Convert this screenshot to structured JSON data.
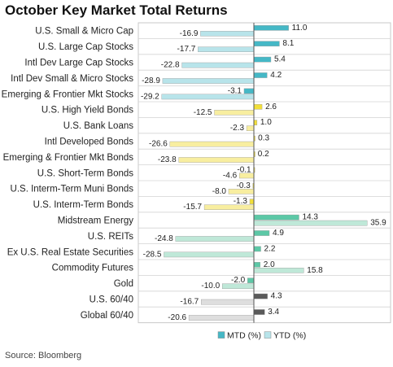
{
  "page": {
    "title": "October Key Market Total Returns",
    "source": "Source: Bloomberg"
  },
  "chart_data": {
    "type": "bar",
    "orientation": "horizontal",
    "title": "October Key Market Total Returns",
    "xlim": [
      -33,
      38
    ],
    "grid": "horizontal row separators",
    "legend_position": "bottom-right",
    "categories": [
      "U.S. Small & Micro Cap",
      "U.S. Large Cap Stocks",
      "Intl Dev Large Cap Stocks",
      "Intl Dev Small & Micro Stocks",
      "Emerging & Frontier Mkt Stocks",
      "U.S. High Yield Bonds",
      "U.S. Bank Loans",
      "Intl Developed Bonds",
      "Emerging & Frontier Mkt Bonds",
      "U.S. Short-Term Bonds",
      "U.S. Interm-Term Muni Bonds",
      "U.S. Interm-Term Bonds",
      "Midstream Energy",
      "U.S. REITs",
      "Ex U.S. Real Estate Securities",
      "Commodity Futures",
      "Gold",
      "U.S. 60/40",
      "Global 60/40"
    ],
    "groups": [
      "blue",
      "blue",
      "blue",
      "blue",
      "blue",
      "yellow",
      "yellow",
      "yellow",
      "yellow",
      "yellow",
      "yellow",
      "yellow",
      "green",
      "green",
      "green",
      "green",
      "green",
      "gray",
      "gray"
    ],
    "group_colors": {
      "blue": {
        "mtd": "#45b8c6",
        "ytd": "#b8e4ea"
      },
      "yellow": {
        "mtd": "#f2df38",
        "ytd": "#f8eea0"
      },
      "green": {
        "mtd": "#5cc8a6",
        "ytd": "#bfe8d8"
      },
      "gray": {
        "mtd": "#5a5a5a",
        "ytd": "#dedede"
      }
    },
    "series": [
      {
        "name": "MTD (%)",
        "values": [
          11.0,
          8.1,
          5.4,
          4.2,
          -3.1,
          2.6,
          1.0,
          0.3,
          0.2,
          -0.1,
          -0.3,
          -1.3,
          14.3,
          4.9,
          2.2,
          2.0,
          -2.0,
          4.3,
          3.4
        ],
        "labels": [
          "11.0",
          "8.1",
          "5.4",
          "4.2",
          "-3.1",
          "2.6",
          "1.0",
          "0.3",
          "0.2",
          "-0.1",
          "-0.3",
          "-1.3",
          "14.3",
          "4.9",
          "2.2",
          "2.0",
          "-2.0",
          "4.3",
          "3.4"
        ]
      },
      {
        "name": "YTD (%)",
        "values": [
          -16.9,
          -17.7,
          -22.8,
          -28.9,
          -29.2,
          -12.5,
          -2.3,
          -26.6,
          -23.8,
          -4.6,
          -8.0,
          -15.7,
          35.9,
          -24.8,
          -28.5,
          15.8,
          -10.0,
          -16.7,
          -20.6
        ],
        "labels": [
          "-16.9",
          "-17.7",
          "-22.8",
          "-28.9",
          "-29.2",
          "-12.5",
          "-2.3",
          "-26.6",
          "-23.8",
          "-4.6",
          "-8.0",
          "-15.7",
          "35.9",
          "-24.8",
          "-28.5",
          "15.8",
          "-10.0",
          "-16.7",
          "-20.6"
        ]
      }
    ],
    "legend": {
      "mtd_label": "MTD (%)",
      "ytd_label": "YTD (%)",
      "mtd_color": "#45b8c6",
      "ytd_color": "#b8e4ea"
    }
  }
}
